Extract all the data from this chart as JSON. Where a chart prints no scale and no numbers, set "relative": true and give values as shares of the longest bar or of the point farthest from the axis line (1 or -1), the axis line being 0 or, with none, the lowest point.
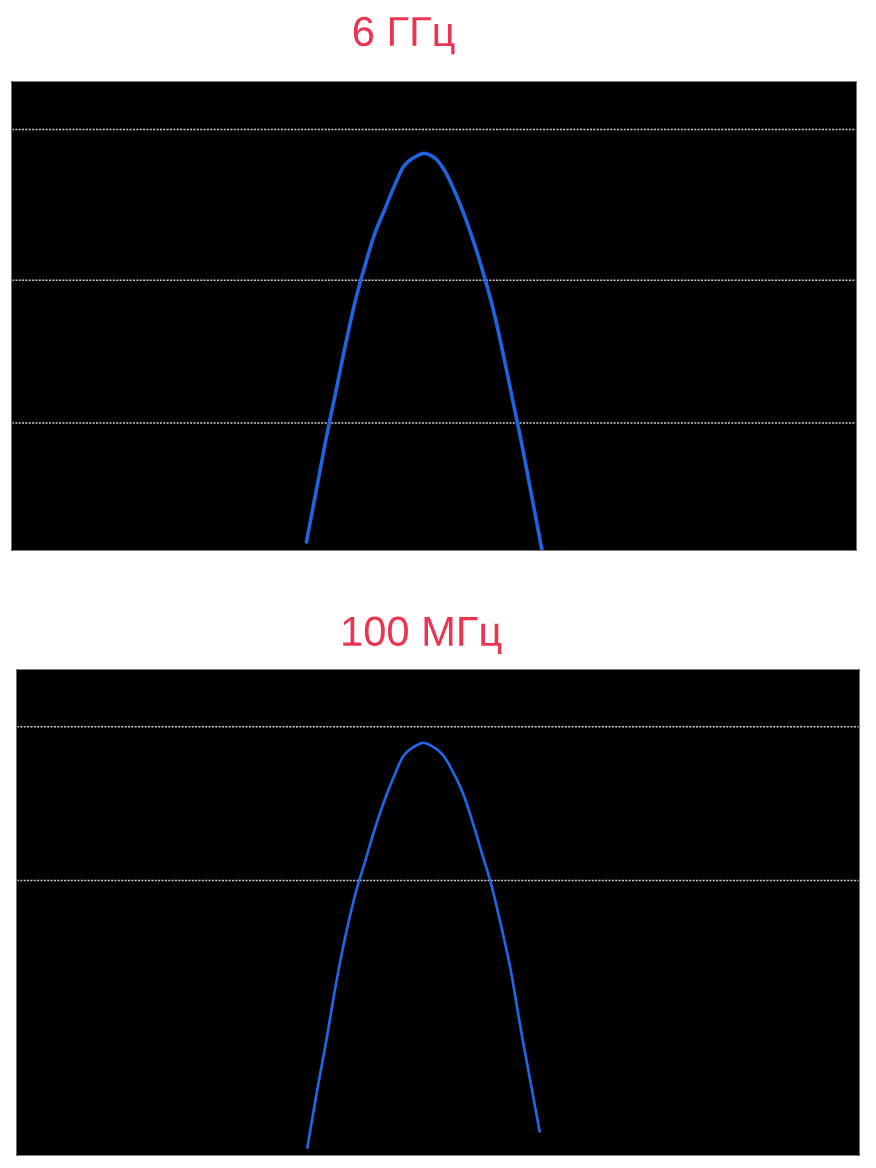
{
  "chart_data": [
    {
      "type": "line",
      "title": "6 ГГц",
      "relative": true,
      "categories": [
        null,
        null,
        null,
        null,
        null,
        null,
        null,
        null,
        null,
        null,
        null,
        null,
        null,
        null,
        null,
        null,
        null,
        null,
        null,
        null,
        null,
        null,
        null,
        null,
        null,
        null,
        null,
        null,
        null,
        null,
        null,
        null,
        null,
        null,
        null,
        null,
        null,
        null,
        null,
        null,
        null,
        null,
        null,
        null,
        null,
        null,
        null,
        null,
        null,
        null,
        null,
        null,
        null,
        null,
        null,
        null,
        null,
        null,
        null,
        null,
        null,
        null,
        null,
        null,
        null,
        null,
        null,
        null,
        null,
        null,
        null,
        null,
        null,
        null,
        null,
        null,
        null,
        null,
        null,
        null,
        null,
        null,
        null,
        null,
        null,
        null,
        null
      ],
      "series": [
        {
          "color": "#1f63e0",
          "values": [
            null,
            null,
            null,
            null,
            null,
            null,
            null,
            null,
            null,
            null,
            null,
            null,
            null,
            null,
            null,
            null,
            null,
            null,
            null,
            null,
            null,
            null,
            null,
            null,
            null,
            null,
            null,
            null,
            null,
            null,
            0.02,
            0.15,
            0.28,
            0.4,
            0.52,
            0.63,
            0.72,
            0.8,
            0.86,
            0.92,
            0.97,
            0.99,
            1.0,
            0.99,
            0.96,
            0.91,
            0.85,
            0.78,
            0.7,
            0.61,
            0.5,
            0.38,
            0.26,
            0.13,
            0.0,
            null,
            null,
            null,
            null,
            null,
            null,
            null,
            null,
            null,
            null,
            null,
            null,
            null,
            null,
            null,
            null,
            null,
            null,
            null,
            null,
            null,
            null,
            null,
            null,
            null,
            null,
            null,
            null,
            null,
            null,
            null,
            null
          ]
        }
      ],
      "ref_lines": [
        {
          "axis": "y",
          "value": 1.06,
          "color": "#cfcfcf",
          "line_style": "dotted"
        },
        {
          "axis": "y",
          "value": 0.68,
          "color": "#cfcfcf",
          "line_style": "dotted"
        },
        {
          "axis": "y",
          "value": 0.32,
          "color": "#cfcfcf",
          "line_style": "dotted"
        }
      ]
    },
    {
      "type": "line",
      "title": "100 МГц",
      "relative": true,
      "categories": [
        null,
        null,
        null,
        null,
        null,
        null,
        null,
        null,
        null,
        null,
        null,
        null,
        null,
        null,
        null,
        null,
        null,
        null,
        null,
        null,
        null,
        null,
        null,
        null,
        null,
        null,
        null,
        null,
        null,
        null,
        null,
        null,
        null,
        null,
        null,
        null,
        null,
        null,
        null,
        null,
        null,
        null,
        null,
        null,
        null,
        null,
        null,
        null,
        null,
        null,
        null,
        null,
        null,
        null,
        null,
        null,
        null,
        null,
        null,
        null,
        null,
        null,
        null,
        null,
        null,
        null,
        null,
        null,
        null,
        null,
        null,
        null,
        null,
        null,
        null,
        null,
        null,
        null,
        null,
        null,
        null,
        null,
        null,
        null,
        null,
        null,
        null,
        null
      ],
      "series": [
        {
          "color": "#1f66e8",
          "values": [
            null,
            null,
            null,
            null,
            null,
            null,
            null,
            null,
            null,
            null,
            null,
            null,
            null,
            null,
            null,
            null,
            null,
            null,
            null,
            null,
            null,
            null,
            null,
            null,
            null,
            null,
            null,
            null,
            null,
            null,
            0.0,
            0.14,
            0.27,
            0.41,
            0.53,
            0.63,
            0.71,
            0.79,
            0.86,
            0.92,
            0.97,
            0.99,
            1.0,
            0.99,
            0.97,
            0.93,
            0.88,
            0.81,
            0.73,
            0.65,
            0.55,
            0.44,
            0.3,
            0.17,
            0.04,
            null,
            null,
            null,
            null,
            null,
            null,
            null,
            null,
            null,
            null,
            null,
            null,
            null,
            null,
            null,
            null,
            null,
            null,
            null,
            null,
            null,
            null,
            null,
            null,
            null,
            null,
            null,
            null,
            null,
            null,
            null,
            null,
            null
          ]
        }
      ],
      "ref_lines": [
        {
          "axis": "y",
          "value": 1.04,
          "color": "#cfcfcf",
          "line_style": "dotted"
        },
        {
          "axis": "y",
          "value": 0.66,
          "color": "#cfcfcf",
          "line_style": "dotted"
        }
      ]
    }
  ]
}
